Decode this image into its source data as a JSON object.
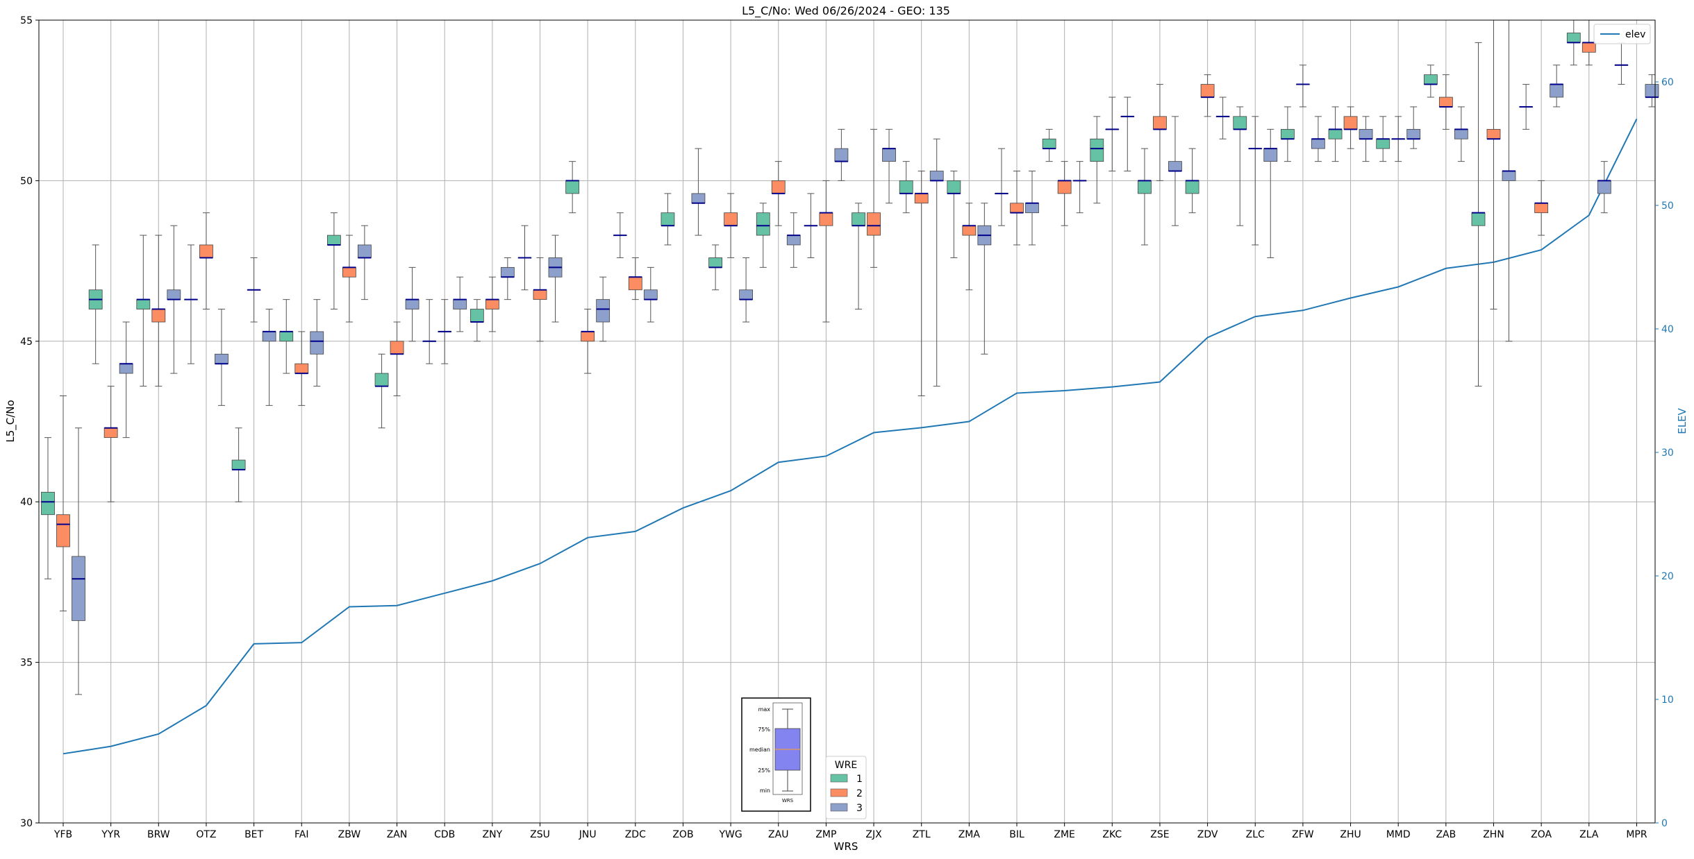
{
  "chart_data": {
    "type": "box",
    "title": "L5_C/No: Wed 06/26/2024 - GEO: 135",
    "xlabel": "WRS",
    "ylabel": "L5_C/No",
    "y2label": "ELEV",
    "ylim": [
      30,
      55
    ],
    "y2lim": [
      0,
      65
    ],
    "yticks": [
      "30",
      "35",
      "40",
      "45",
      "50",
      "55"
    ],
    "y2ticks": [
      "0",
      "10",
      "20",
      "30",
      "40",
      "50",
      "60"
    ],
    "grid": true,
    "categories": [
      "YFB",
      "YYR",
      "BRW",
      "OTZ",
      "BET",
      "FAI",
      "ZBW",
      "ZAN",
      "CDB",
      "ZNY",
      "ZSU",
      "JNU",
      "ZDC",
      "ZOB",
      "YWG",
      "ZAU",
      "ZMP",
      "ZJX",
      "ZTL",
      "ZMA",
      "BIL",
      "ZME",
      "ZKC",
      "ZSE",
      "ZDV",
      "ZLC",
      "ZFW",
      "ZHU",
      "MMD",
      "ZAB",
      "ZHN",
      "ZOA",
      "ZLA",
      "MPR"
    ],
    "colors": {
      "1": "#66c2a5",
      "2": "#fc8d62",
      "3": "#8da0cb",
      "elev": "#1f77b4",
      "median": "#00008b"
    },
    "legend": {
      "title": "WRE",
      "labels": [
        "1",
        "2",
        "3"
      ],
      "placement": "bottom-center"
    },
    "elev_legend": {
      "label": "elev",
      "placement": "top-right"
    },
    "key_labels": {
      "max": "max",
      "q3": "75%",
      "median": "median",
      "q1": "25%",
      "min": "min",
      "x": "WRS"
    },
    "elev": [
      5.6,
      6.2,
      7.2,
      9.5,
      14.5,
      14.6,
      17.5,
      17.6,
      18.6,
      19.6,
      21.0,
      23.1,
      23.6,
      25.5,
      26.9,
      29.2,
      29.7,
      31.6,
      32.0,
      32.5,
      34.8,
      35.0,
      35.3,
      35.7,
      39.3,
      41.0,
      41.5,
      42.5,
      43.4,
      44.9,
      45.4,
      46.4,
      49.2,
      57.0
    ],
    "boxes": [
      {
        "wrs": "YFB",
        "wre": "1",
        "min": 37.6,
        "q1": 39.6,
        "median": 40.0,
        "q3": 40.3,
        "max": 42.0
      },
      {
        "wrs": "YFB",
        "wre": "2",
        "min": 36.6,
        "q1": 38.6,
        "median": 39.3,
        "q3": 39.6,
        "max": 43.3
      },
      {
        "wrs": "YFB",
        "wre": "3",
        "min": 34.0,
        "q1": 36.3,
        "median": 37.6,
        "q3": 38.3,
        "max": 42.3
      },
      {
        "wrs": "YYR",
        "wre": "2",
        "min": 40.0,
        "q1": 42.0,
        "median": 42.3,
        "q3": 42.3,
        "max": 43.6
      },
      {
        "wrs": "YYR",
        "wre": "3",
        "min": 42.0,
        "q1": 44.0,
        "median": 44.3,
        "q3": 44.3,
        "max": 45.6
      },
      {
        "wrs": "YYR",
        "wre": "1",
        "min": 44.3,
        "q1": 46.0,
        "median": 46.3,
        "q3": 46.6,
        "max": 48.0
      },
      {
        "wrs": "BRW",
        "wre": "1",
        "min": 43.6,
        "q1": 46.0,
        "median": 46.3,
        "q3": 46.3,
        "max": 48.3
      },
      {
        "wrs": "BRW",
        "wre": "2",
        "min": 43.6,
        "q1": 45.6,
        "median": 46.0,
        "q3": 46.0,
        "max": 48.3
      },
      {
        "wrs": "BRW",
        "wre": "3",
        "min": 44.0,
        "q1": 46.3,
        "median": 46.3,
        "q3": 46.6,
        "max": 48.6
      },
      {
        "wrs": "OTZ",
        "wre": "1",
        "min": 44.3,
        "q1": 46.3,
        "median": 46.3,
        "q3": 46.3,
        "max": 48.0
      },
      {
        "wrs": "OTZ",
        "wre": "2",
        "min": 46.0,
        "q1": 47.6,
        "median": 47.6,
        "q3": 48.0,
        "max": 49.0
      },
      {
        "wrs": "OTZ",
        "wre": "3",
        "min": 43.0,
        "q1": 44.3,
        "median": 44.3,
        "q3": 44.6,
        "max": 46.0
      },
      {
        "wrs": "BET",
        "wre": "1",
        "min": 40.0,
        "q1": 41.0,
        "median": 41.0,
        "q3": 41.3,
        "max": 42.3
      },
      {
        "wrs": "BET",
        "wre": "2",
        "min": 45.6,
        "q1": 46.6,
        "median": 46.6,
        "q3": 46.6,
        "max": 47.6
      },
      {
        "wrs": "BET",
        "wre": "3",
        "min": 43.0,
        "q1": 45.0,
        "median": 45.3,
        "q3": 45.3,
        "max": 46.0
      },
      {
        "wrs": "FAI",
        "wre": "1",
        "min": 44.0,
        "q1": 45.0,
        "median": 45.3,
        "q3": 45.3,
        "max": 46.3
      },
      {
        "wrs": "FAI",
        "wre": "2",
        "min": 43.0,
        "q1": 44.0,
        "median": 44.0,
        "q3": 44.3,
        "max": 45.3
      },
      {
        "wrs": "FAI",
        "wre": "3",
        "min": 43.6,
        "q1": 44.6,
        "median": 45.0,
        "q3": 45.3,
        "max": 46.3
      },
      {
        "wrs": "ZBW",
        "wre": "1",
        "min": 46.0,
        "q1": 48.0,
        "median": 48.0,
        "q3": 48.3,
        "max": 49.0
      },
      {
        "wrs": "ZBW",
        "wre": "2",
        "min": 45.6,
        "q1": 47.0,
        "median": 47.3,
        "q3": 47.3,
        "max": 48.3
      },
      {
        "wrs": "ZBW",
        "wre": "3",
        "min": 46.3,
        "q1": 47.6,
        "median": 47.6,
        "q3": 48.0,
        "max": 48.6
      },
      {
        "wrs": "ZAN",
        "wre": "1",
        "min": 42.3,
        "q1": 43.6,
        "median": 43.6,
        "q3": 44.0,
        "max": 44.6
      },
      {
        "wrs": "ZAN",
        "wre": "2",
        "min": 43.3,
        "q1": 44.6,
        "median": 44.6,
        "q3": 45.0,
        "max": 45.6
      },
      {
        "wrs": "ZAN",
        "wre": "3",
        "min": 45.0,
        "q1": 46.0,
        "median": 46.3,
        "q3": 46.3,
        "max": 47.3
      },
      {
        "wrs": "CDB",
        "wre": "1",
        "min": 44.3,
        "q1": 45.0,
        "median": 45.0,
        "q3": 45.0,
        "max": 46.3
      },
      {
        "wrs": "CDB",
        "wre": "2",
        "min": 44.3,
        "q1": 45.3,
        "median": 45.3,
        "q3": 45.3,
        "max": 46.3
      },
      {
        "wrs": "CDB",
        "wre": "3",
        "min": 45.3,
        "q1": 46.0,
        "median": 46.3,
        "q3": 46.3,
        "max": 47.0
      },
      {
        "wrs": "ZNY",
        "wre": "1",
        "min": 45.0,
        "q1": 45.6,
        "median": 45.6,
        "q3": 46.0,
        "max": 46.3
      },
      {
        "wrs": "ZNY",
        "wre": "2",
        "min": 45.3,
        "q1": 46.0,
        "median": 46.3,
        "q3": 46.3,
        "max": 47.0
      },
      {
        "wrs": "ZNY",
        "wre": "3",
        "min": 46.3,
        "q1": 47.0,
        "median": 47.0,
        "q3": 47.3,
        "max": 47.6
      },
      {
        "wrs": "ZSU",
        "wre": "1",
        "min": 46.6,
        "q1": 47.6,
        "median": 47.6,
        "q3": 47.6,
        "max": 48.6
      },
      {
        "wrs": "ZSU",
        "wre": "2",
        "min": 45.0,
        "q1": 46.3,
        "median": 46.6,
        "q3": 46.6,
        "max": 47.6
      },
      {
        "wrs": "ZSU",
        "wre": "3",
        "min": 45.6,
        "q1": 47.0,
        "median": 47.3,
        "q3": 47.6,
        "max": 48.3
      },
      {
        "wrs": "JNU",
        "wre": "1",
        "min": 49.0,
        "q1": 49.6,
        "median": 50.0,
        "q3": 50.0,
        "max": 50.6
      },
      {
        "wrs": "JNU",
        "wre": "2",
        "min": 44.0,
        "q1": 45.0,
        "median": 45.3,
        "q3": 45.3,
        "max": 46.0
      },
      {
        "wrs": "JNU",
        "wre": "3",
        "min": 45.0,
        "q1": 45.6,
        "median": 46.0,
        "q3": 46.3,
        "max": 47.0
      },
      {
        "wrs": "ZDC",
        "wre": "1",
        "min": 47.6,
        "q1": 48.3,
        "median": 48.3,
        "q3": 48.3,
        "max": 49.0
      },
      {
        "wrs": "ZDC",
        "wre": "2",
        "min": 46.3,
        "q1": 46.6,
        "median": 47.0,
        "q3": 47.0,
        "max": 47.6
      },
      {
        "wrs": "ZDC",
        "wre": "3",
        "min": 45.6,
        "q1": 46.3,
        "median": 46.3,
        "q3": 46.6,
        "max": 47.3
      },
      {
        "wrs": "ZOB",
        "wre": "1",
        "min": 48.0,
        "q1": 48.6,
        "median": 48.6,
        "q3": 49.0,
        "max": 49.6
      },
      {
        "wrs": "ZOB",
        "wre": "3",
        "min": 48.3,
        "q1": 49.3,
        "median": 49.3,
        "q3": 49.6,
        "max": 51.0
      },
      {
        "wrs": "YWG",
        "wre": "1",
        "min": 46.6,
        "q1": 47.3,
        "median": 47.3,
        "q3": 47.6,
        "max": 48.0
      },
      {
        "wrs": "YWG",
        "wre": "2",
        "min": 47.6,
        "q1": 48.6,
        "median": 48.6,
        "q3": 49.0,
        "max": 49.6
      },
      {
        "wrs": "YWG",
        "wre": "3",
        "min": 45.6,
        "q1": 46.3,
        "median": 46.3,
        "q3": 46.6,
        "max": 47.6
      },
      {
        "wrs": "ZAU",
        "wre": "1",
        "min": 47.3,
        "q1": 48.3,
        "median": 48.6,
        "q3": 49.0,
        "max": 49.3
      },
      {
        "wrs": "ZAU",
        "wre": "2",
        "min": 48.6,
        "q1": 49.6,
        "median": 49.6,
        "q3": 50.0,
        "max": 50.6
      },
      {
        "wrs": "ZAU",
        "wre": "3",
        "min": 47.3,
        "q1": 48.0,
        "median": 48.3,
        "q3": 48.3,
        "max": 49.0
      },
      {
        "wrs": "ZMP",
        "wre": "1",
        "min": 47.6,
        "q1": 48.6,
        "median": 48.6,
        "q3": 48.6,
        "max": 49.6
      },
      {
        "wrs": "ZMP",
        "wre": "2",
        "min": 45.6,
        "q1": 48.6,
        "median": 49.0,
        "q3": 49.0,
        "max": 50.0
      },
      {
        "wrs": "ZMP",
        "wre": "3",
        "min": 50.0,
        "q1": 50.6,
        "median": 50.6,
        "q3": 51.0,
        "max": 51.6
      },
      {
        "wrs": "ZJX",
        "wre": "1",
        "min": 46.0,
        "q1": 48.6,
        "median": 48.6,
        "q3": 49.0,
        "max": 49.3
      },
      {
        "wrs": "ZJX",
        "wre": "2",
        "min": 47.3,
        "q1": 48.3,
        "median": 48.6,
        "q3": 49.0,
        "max": 51.6
      },
      {
        "wrs": "ZJX",
        "wre": "3",
        "min": 49.3,
        "q1": 50.6,
        "median": 51.0,
        "q3": 51.0,
        "max": 51.6
      },
      {
        "wrs": "ZTL",
        "wre": "1",
        "min": 49.0,
        "q1": 49.6,
        "median": 49.6,
        "q3": 50.0,
        "max": 50.6
      },
      {
        "wrs": "ZTL",
        "wre": "2",
        "min": 43.3,
        "q1": 49.3,
        "median": 49.6,
        "q3": 49.6,
        "max": 50.3
      },
      {
        "wrs": "ZTL",
        "wre": "3",
        "min": 43.6,
        "q1": 50.0,
        "median": 50.0,
        "q3": 50.3,
        "max": 51.3
      },
      {
        "wrs": "ZMA",
        "wre": "1",
        "min": 47.6,
        "q1": 49.6,
        "median": 49.6,
        "q3": 50.0,
        "max": 50.3
      },
      {
        "wrs": "ZMA",
        "wre": "2",
        "min": 46.6,
        "q1": 48.3,
        "median": 48.6,
        "q3": 48.6,
        "max": 49.3
      },
      {
        "wrs": "ZMA",
        "wre": "3",
        "min": 44.6,
        "q1": 48.0,
        "median": 48.3,
        "q3": 48.6,
        "max": 49.3
      },
      {
        "wrs": "BIL",
        "wre": "1",
        "min": 48.6,
        "q1": 49.6,
        "median": 49.6,
        "q3": 49.6,
        "max": 51.0
      },
      {
        "wrs": "BIL",
        "wre": "2",
        "min": 48.0,
        "q1": 49.0,
        "median": 49.0,
        "q3": 49.3,
        "max": 50.3
      },
      {
        "wrs": "BIL",
        "wre": "3",
        "min": 48.0,
        "q1": 49.0,
        "median": 49.3,
        "q3": 49.3,
        "max": 50.3
      },
      {
        "wrs": "ZME",
        "wre": "1",
        "min": 50.6,
        "q1": 51.0,
        "median": 51.0,
        "q3": 51.3,
        "max": 51.6
      },
      {
        "wrs": "ZME",
        "wre": "2",
        "min": 48.6,
        "q1": 49.6,
        "median": 50.0,
        "q3": 50.0,
        "max": 50.6
      },
      {
        "wrs": "ZME",
        "wre": "3",
        "min": 49.0,
        "q1": 50.0,
        "median": 50.0,
        "q3": 50.0,
        "max": 50.6
      },
      {
        "wrs": "ZKC",
        "wre": "1",
        "min": 49.3,
        "q1": 50.6,
        "median": 51.0,
        "q3": 51.3,
        "max": 52.0
      },
      {
        "wrs": "ZKC",
        "wre": "2",
        "min": 50.3,
        "q1": 51.6,
        "median": 51.6,
        "q3": 51.6,
        "max": 52.6
      },
      {
        "wrs": "ZKC",
        "wre": "3",
        "min": 50.3,
        "q1": 52.0,
        "median": 52.0,
        "q3": 52.0,
        "max": 52.6
      },
      {
        "wrs": "ZSE",
        "wre": "1",
        "min": 48.0,
        "q1": 49.6,
        "median": 50.0,
        "q3": 50.0,
        "max": 51.0
      },
      {
        "wrs": "ZSE",
        "wre": "2",
        "min": 50.0,
        "q1": 51.6,
        "median": 51.6,
        "q3": 52.0,
        "max": 53.0
      },
      {
        "wrs": "ZSE",
        "wre": "3",
        "min": 48.6,
        "q1": 50.3,
        "median": 50.3,
        "q3": 50.6,
        "max": 52.0
      },
      {
        "wrs": "ZDV",
        "wre": "1",
        "min": 49.0,
        "q1": 49.6,
        "median": 50.0,
        "q3": 50.0,
        "max": 51.0
      },
      {
        "wrs": "ZDV",
        "wre": "2",
        "min": 52.0,
        "q1": 52.6,
        "median": 52.6,
        "q3": 53.0,
        "max": 53.3
      },
      {
        "wrs": "ZDV",
        "wre": "3",
        "min": 51.3,
        "q1": 52.0,
        "median": 52.0,
        "q3": 52.0,
        "max": 52.6
      },
      {
        "wrs": "ZLC",
        "wre": "1",
        "min": 48.6,
        "q1": 51.6,
        "median": 51.6,
        "q3": 52.0,
        "max": 52.3
      },
      {
        "wrs": "ZLC",
        "wre": "2",
        "min": 48.0,
        "q1": 51.0,
        "median": 51.0,
        "q3": 51.0,
        "max": 52.0
      },
      {
        "wrs": "ZLC",
        "wre": "3",
        "min": 47.6,
        "q1": 50.6,
        "median": 51.0,
        "q3": 51.0,
        "max": 51.6
      },
      {
        "wrs": "ZFW",
        "wre": "1",
        "min": 50.6,
        "q1": 51.3,
        "median": 51.3,
        "q3": 51.6,
        "max": 52.3
      },
      {
        "wrs": "ZFW",
        "wre": "2",
        "min": 52.3,
        "q1": 53.0,
        "median": 53.0,
        "q3": 53.0,
        "max": 53.6
      },
      {
        "wrs": "ZFW",
        "wre": "3",
        "min": 50.6,
        "q1": 51.0,
        "median": 51.3,
        "q3": 51.3,
        "max": 52.0
      },
      {
        "wrs": "ZHU",
        "wre": "1",
        "min": 50.6,
        "q1": 51.3,
        "median": 51.6,
        "q3": 51.6,
        "max": 52.3
      },
      {
        "wrs": "ZHU",
        "wre": "2",
        "min": 51.0,
        "q1": 51.6,
        "median": 51.6,
        "q3": 52.0,
        "max": 52.3
      },
      {
        "wrs": "ZHU",
        "wre": "3",
        "min": 50.6,
        "q1": 51.3,
        "median": 51.3,
        "q3": 51.6,
        "max": 52.0
      },
      {
        "wrs": "MMD",
        "wre": "1",
        "min": 50.6,
        "q1": 51.0,
        "median": 51.3,
        "q3": 51.3,
        "max": 52.0
      },
      {
        "wrs": "MMD",
        "wre": "2",
        "min": 50.6,
        "q1": 51.3,
        "median": 51.3,
        "q3": 51.3,
        "max": 52.0
      },
      {
        "wrs": "MMD",
        "wre": "3",
        "min": 51.0,
        "q1": 51.3,
        "median": 51.3,
        "q3": 51.6,
        "max": 52.3
      },
      {
        "wrs": "ZAB",
        "wre": "1",
        "min": 52.6,
        "q1": 53.0,
        "median": 53.0,
        "q3": 53.3,
        "max": 53.6
      },
      {
        "wrs": "ZAB",
        "wre": "2",
        "min": 51.6,
        "q1": 52.3,
        "median": 52.3,
        "q3": 52.6,
        "max": 53.3
      },
      {
        "wrs": "ZAB",
        "wre": "3",
        "min": 50.6,
        "q1": 51.3,
        "median": 51.6,
        "q3": 51.6,
        "max": 52.3
      },
      {
        "wrs": "ZHN",
        "wre": "1",
        "min": 43.6,
        "q1": 48.6,
        "median": 49.0,
        "q3": 49.0,
        "max": 54.3
      },
      {
        "wrs": "ZHN",
        "wre": "2",
        "min": 46.0,
        "q1": 51.3,
        "median": 51.3,
        "q3": 51.6,
        "max": 55.0
      },
      {
        "wrs": "ZHN",
        "wre": "3",
        "min": 45.0,
        "q1": 50.0,
        "median": 50.3,
        "q3": 50.3,
        "max": 55.0
      },
      {
        "wrs": "ZOA",
        "wre": "1",
        "min": 51.6,
        "q1": 52.3,
        "median": 52.3,
        "q3": 52.3,
        "max": 53.0
      },
      {
        "wrs": "ZOA",
        "wre": "2",
        "min": 48.3,
        "q1": 49.0,
        "median": 49.3,
        "q3": 49.3,
        "max": 50.0
      },
      {
        "wrs": "ZOA",
        "wre": "3",
        "min": 52.3,
        "q1": 52.6,
        "median": 53.0,
        "q3": 53.0,
        "max": 53.6
      },
      {
        "wrs": "ZLA",
        "wre": "1",
        "min": 53.6,
        "q1": 54.3,
        "median": 54.3,
        "q3": 54.6,
        "max": 55.0
      },
      {
        "wrs": "ZLA",
        "wre": "2",
        "min": 53.6,
        "q1": 54.0,
        "median": 54.3,
        "q3": 54.3,
        "max": 55.0
      },
      {
        "wrs": "ZLA",
        "wre": "3",
        "min": 49.0,
        "q1": 49.6,
        "median": 50.0,
        "q3": 50.0,
        "max": 50.6
      },
      {
        "wrs": "MPR",
        "wre": "1",
        "min": 53.0,
        "q1": 53.6,
        "median": 53.6,
        "q3": 53.6,
        "max": 54.3
      },
      {
        "wrs": "MPR",
        "wre": "3",
        "min": 52.3,
        "q1": 52.6,
        "median": 52.6,
        "q3": 53.0,
        "max": 53.3
      }
    ]
  }
}
